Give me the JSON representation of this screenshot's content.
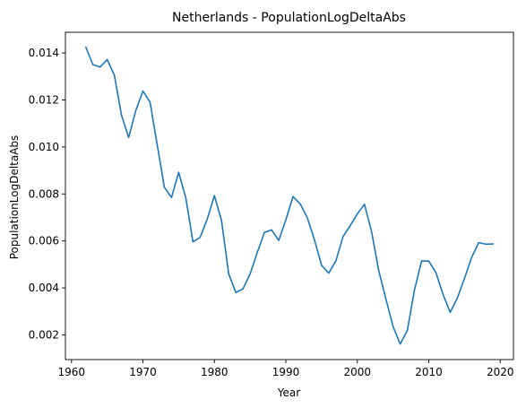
{
  "chart_data": {
    "type": "line",
    "title": "Netherlands - PopulationLogDeltaAbs",
    "xlabel": "Year",
    "ylabel": "PopulationLogDeltaAbs",
    "xlim": [
      1959.15,
      2021.85
    ],
    "ylim": [
      0.00095,
      0.01488
    ],
    "xticks": [
      1960,
      1970,
      1980,
      1990,
      2000,
      2010,
      2020
    ],
    "yticks": [
      0.002,
      0.004,
      0.006,
      0.008,
      0.01,
      0.012,
      0.014
    ],
    "ytick_labels": [
      "0.002",
      "0.004",
      "0.006",
      "0.008",
      "0.010",
      "0.012",
      "0.014"
    ],
    "grid": false,
    "series": [
      {
        "color": "#1f77b4",
        "x": [
          1962,
          1963,
          1964,
          1965,
          1966,
          1967,
          1968,
          1969,
          1970,
          1971,
          1972,
          1973,
          1974,
          1975,
          1976,
          1977,
          1978,
          1979,
          1980,
          1981,
          1982,
          1983,
          1984,
          1985,
          1986,
          1987,
          1988,
          1989,
          1990,
          1991,
          1992,
          1993,
          1994,
          1995,
          1996,
          1997,
          1998,
          1999,
          2000,
          2001,
          2002,
          2003,
          2004,
          2005,
          2006,
          2007,
          2008,
          2009,
          2010,
          2011,
          2012,
          2013,
          2014,
          2015,
          2016,
          2017,
          2018,
          2019
        ],
        "y": [
          0.01425,
          0.0135,
          0.0134,
          0.01372,
          0.01305,
          0.01135,
          0.0104,
          0.01155,
          0.01238,
          0.0119,
          0.01008,
          0.00828,
          0.00785,
          0.00892,
          0.00783,
          0.00596,
          0.00615,
          0.00693,
          0.00793,
          0.00686,
          0.0046,
          0.0038,
          0.00396,
          0.0046,
          0.00551,
          0.00636,
          0.00647,
          0.00602,
          0.0069,
          0.00789,
          0.00758,
          0.00699,
          0.00605,
          0.00496,
          0.00463,
          0.00515,
          0.00618,
          0.00665,
          0.00715,
          0.00756,
          0.00639,
          0.00473,
          0.00353,
          0.00236,
          0.00161,
          0.00219,
          0.00392,
          0.00515,
          0.00514,
          0.00465,
          0.00372,
          0.00296,
          0.00357,
          0.00441,
          0.0053,
          0.00593,
          0.00586,
          0.00587
        ]
      }
    ]
  }
}
